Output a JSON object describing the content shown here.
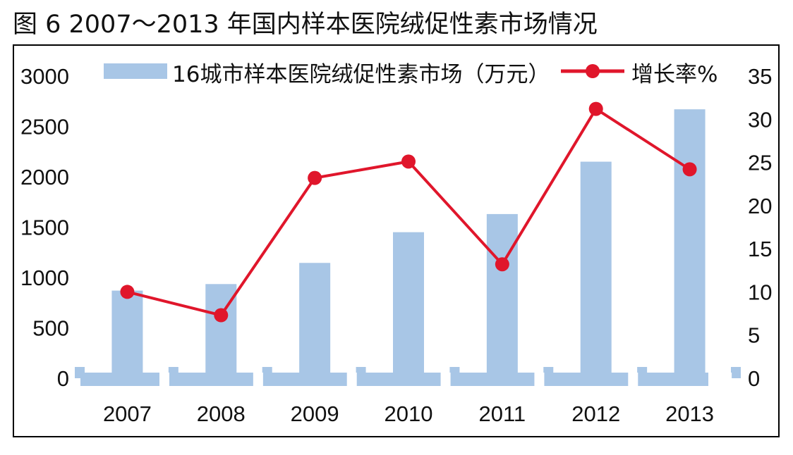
{
  "figure_title": "图 6  2007～2013 年国内样本医院绒促性素市场情况",
  "colors": {
    "bar": "#a8c6e6",
    "line": "#e0162b",
    "text": "#111111"
  },
  "chart_data": {
    "type": "bar+line",
    "title": "",
    "categories": [
      "2007",
      "2008",
      "2009",
      "2010",
      "2011",
      "2012",
      "2013"
    ],
    "series": [
      {
        "name": "16城市样本医院绒促性素市场（万元）",
        "type": "bar",
        "axis": "left",
        "values": [
          870,
          935,
          1145,
          1450,
          1630,
          2150,
          2670
        ]
      },
      {
        "name": "增长率%",
        "type": "line",
        "axis": "right",
        "values": [
          10.0,
          7.3,
          23.2,
          25.1,
          13.2,
          31.2,
          24.2
        ]
      }
    ],
    "y_left": {
      "ylim": [
        0,
        3000
      ],
      "ticks": [
        "0",
        "500",
        "1000",
        "1500",
        "2000",
        "2500",
        "3000"
      ]
    },
    "y_right": {
      "ylim": [
        0,
        35
      ],
      "ticks": [
        "0",
        "5",
        "10",
        "15",
        "20",
        "25",
        "30",
        "35"
      ]
    },
    "legend_position": "top",
    "grid": false
  }
}
